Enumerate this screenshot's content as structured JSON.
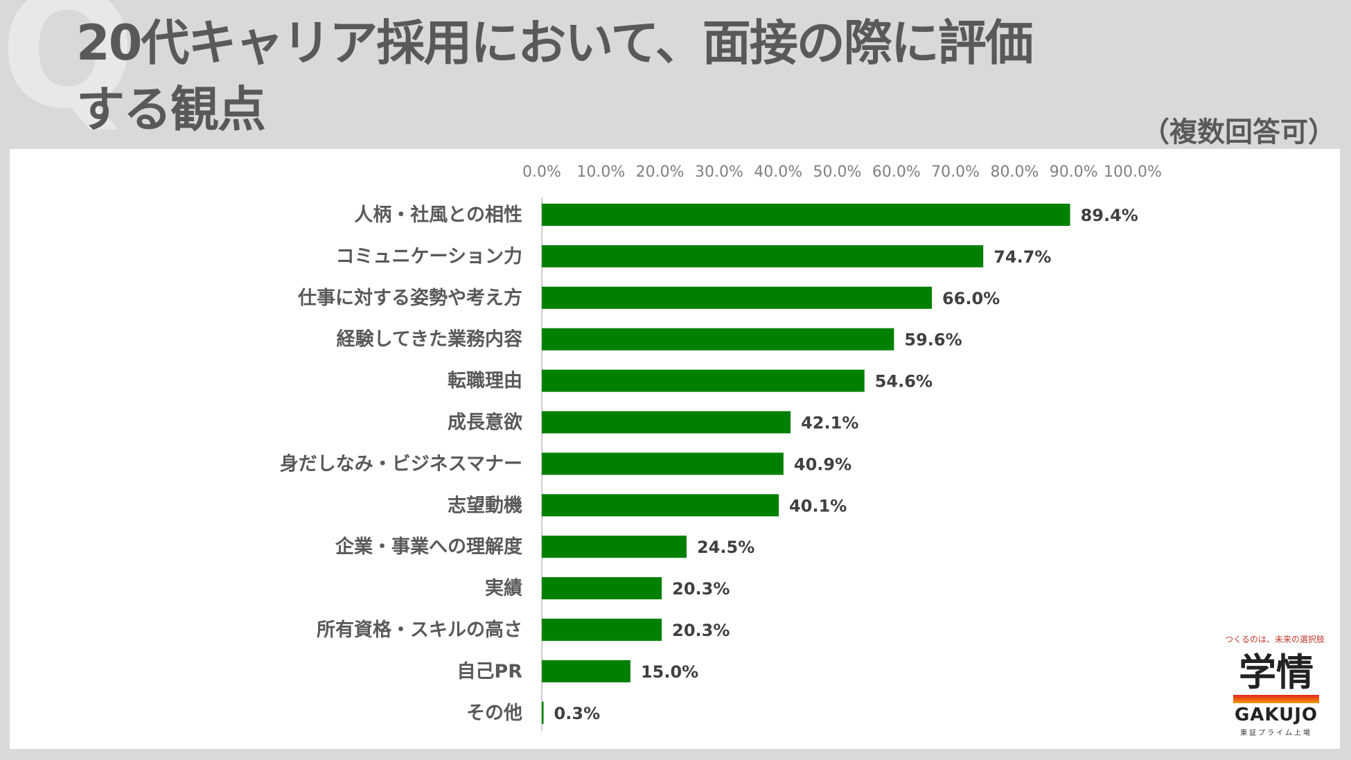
{
  "header": {
    "title_line1": "20代キャリア採用において、面接の際に評価",
    "title_line2": "する観点",
    "note": "（複数回答可）",
    "watermark": "Q"
  },
  "chart_data": {
    "type": "bar",
    "orientation": "horizontal",
    "title": "20代キャリア採用において、面接の際に評価する観点",
    "categories": [
      "人柄・社風との相性",
      "コミュニケーション力",
      "仕事に対する姿勢や考え方",
      "経験してきた業務内容",
      "転職理由",
      "成長意欲",
      "身だしなみ・ビジネスマナー",
      "志望動機",
      "企業・事業への理解度",
      "実績",
      "所有資格・スキルの高さ",
      "自己PR",
      "その他"
    ],
    "values": [
      89.4,
      74.7,
      66.0,
      59.6,
      54.6,
      42.1,
      40.9,
      40.1,
      24.5,
      20.3,
      20.3,
      15.0,
      0.3
    ],
    "value_labels": [
      "89.4%",
      "74.7%",
      "66.0%",
      "59.6%",
      "54.6%",
      "42.1%",
      "40.9%",
      "40.1%",
      "24.5%",
      "20.3%",
      "20.3%",
      "15.0%",
      "0.3%"
    ],
    "xlim": [
      0,
      100
    ],
    "ticks": [
      "0.0%",
      "10.0%",
      "20.0%",
      "30.0%",
      "40.0%",
      "50.0%",
      "60.0%",
      "70.0%",
      "80.0%",
      "90.0%",
      "100.0%"
    ],
    "xlabel": "",
    "ylabel": "",
    "grid": false,
    "axis_position": "top",
    "bar_color": "#008000"
  },
  "logo": {
    "tagline": "つくるのは、未来の選択肢",
    "kanji": "学情",
    "name": "GAKUJO",
    "sub": "東証プライム上場"
  }
}
